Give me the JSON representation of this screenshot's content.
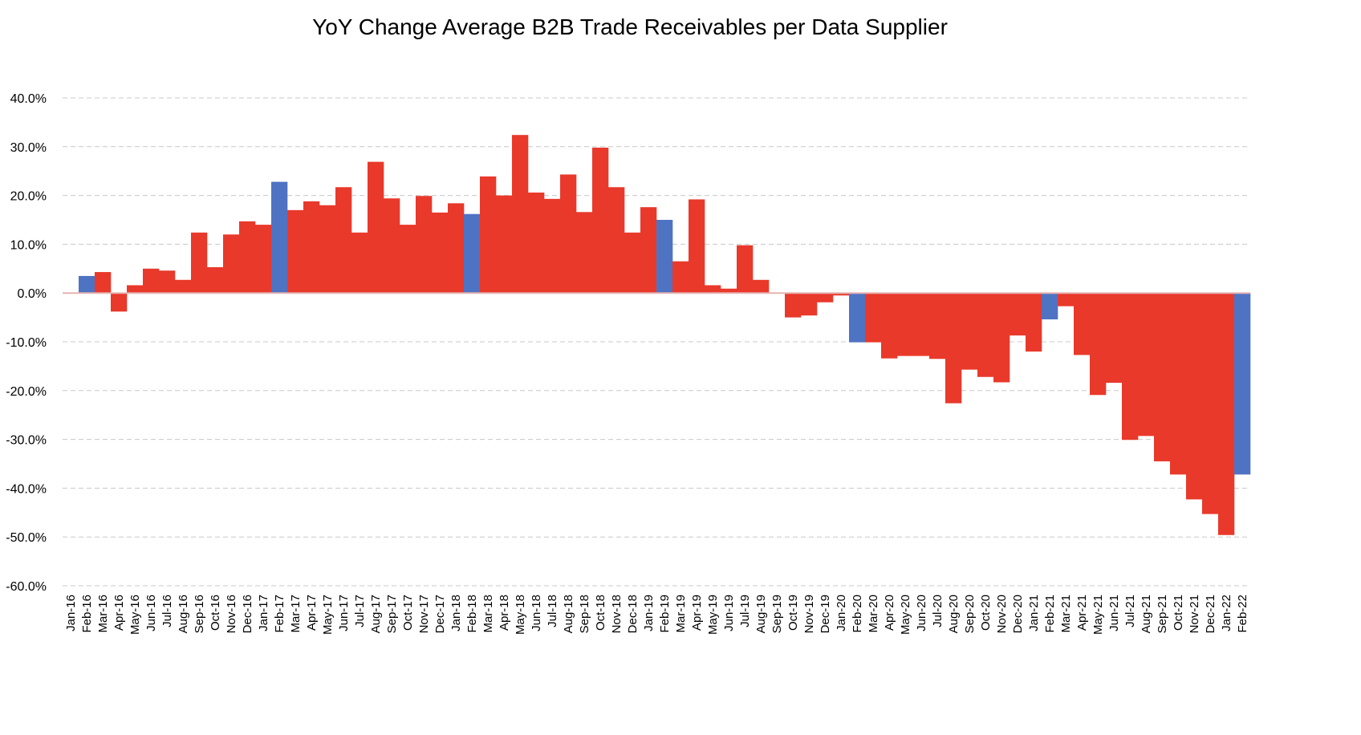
{
  "chart_data": {
    "type": "bar",
    "title": "YoY Change Average B2B Trade Receivables per Data Supplier",
    "xlabel": "",
    "ylabel": "",
    "ylim": [
      -60,
      40
    ],
    "yticks": [
      "40.0%",
      "30.0%",
      "20.0%",
      "10.0%",
      "0.0%",
      "-10.0%",
      "-20.0%",
      "-30.0%",
      "-40.0%",
      "-50.0%",
      "-60.0%"
    ],
    "yticks_values": [
      40,
      30,
      20,
      10,
      0,
      -10,
      -20,
      -30,
      -40,
      -50,
      -60
    ],
    "grid": true,
    "colors": {
      "red": "#e8392b",
      "blue": "#4f73c3"
    },
    "categories": [
      "Jan-16",
      "Feb-16",
      "Mar-16",
      "Apr-16",
      "May-16",
      "Jun-16",
      "Jul-16",
      "Aug-16",
      "Sep-16",
      "Oct-16",
      "Nov-16",
      "Dec-16",
      "Jan-17",
      "Feb-17",
      "Mar-17",
      "Apr-17",
      "May-17",
      "Jun-17",
      "Jul-17",
      "Aug-17",
      "Sep-17",
      "Oct-17",
      "Nov-17",
      "Dec-17",
      "Jan-18",
      "Feb-18",
      "Mar-18",
      "Apr-18",
      "May-18",
      "Jun-18",
      "Jul-18",
      "Aug-18",
      "Sep-18",
      "Oct-18",
      "Nov-18",
      "Dec-18",
      "Jan-19",
      "Feb-19",
      "Mar-19",
      "Apr-19",
      "May-19",
      "Jun-19",
      "Jul-19",
      "Aug-19",
      "Sep-19",
      "Oct-19",
      "Nov-19",
      "Dec-19",
      "Jan-20",
      "Feb-20",
      "Mar-20",
      "Apr-20",
      "May-20",
      "Jun-20",
      "Jul-20",
      "Aug-20",
      "Sep-20",
      "Oct-20",
      "Nov-20",
      "Dec-20",
      "Jan-21",
      "Feb-21",
      "Mar-21",
      "Apr-21",
      "May-21",
      "Jun-21",
      "Jul-21",
      "Aug-21",
      "Sep-21",
      "Oct-21",
      "Nov-21",
      "Dec-21",
      "Jan-22",
      "Feb-22"
    ],
    "values": [
      0,
      3.5,
      4.3,
      -3.8,
      1.6,
      5.0,
      4.6,
      2.7,
      12.4,
      5.3,
      12.0,
      14.7,
      14.0,
      22.8,
      17.0,
      18.8,
      18.0,
      21.7,
      12.4,
      26.9,
      19.4,
      14.0,
      19.9,
      16.5,
      18.4,
      16.2,
      23.9,
      20.0,
      32.4,
      20.6,
      19.3,
      24.3,
      16.6,
      29.8,
      21.7,
      12.4,
      17.6,
      15.0,
      6.5,
      19.2,
      1.6,
      0.9,
      9.8,
      2.7,
      0,
      -5.0,
      -4.6,
      -1.9,
      -0.5,
      -10.1,
      -10.1,
      -13.4,
      -12.9,
      -12.9,
      -13.5,
      -22.6,
      -15.7,
      -17.2,
      -18.3,
      -8.7,
      -12.0,
      -5.4,
      -2.7,
      -12.7,
      -20.9,
      -18.4,
      -30.1,
      -29.3,
      -34.5,
      -37.2,
      -42.3,
      -45.3,
      -49.6,
      -37.2
    ],
    "highlight_blue": [
      "Feb-16",
      "Feb-17",
      "Feb-18",
      "Feb-19",
      "Feb-20",
      "Feb-21",
      "Feb-22"
    ]
  }
}
